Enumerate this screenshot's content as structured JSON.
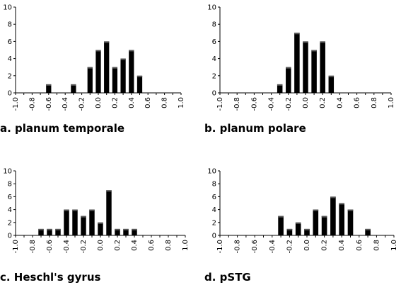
{
  "chart_data": [
    {
      "type": "bar",
      "title": "a. planum temporale",
      "x": [
        -1.0,
        -0.9,
        -0.8,
        -0.7,
        -0.6,
        -0.5,
        -0.4,
        -0.3,
        -0.2,
        -0.1,
        0.0,
        0.1,
        0.2,
        0.3,
        0.4,
        0.5,
        0.6,
        0.7,
        0.8,
        0.9,
        1.0
      ],
      "values": [
        0,
        0,
        0,
        0,
        1,
        0,
        0,
        1,
        0,
        3,
        5,
        6,
        3,
        4,
        5,
        2,
        0,
        0,
        0,
        0,
        0
      ],
      "xticks": [
        "-1.0",
        "-0.8",
        "-0.6",
        "-0.4",
        "-0.2",
        "0.0",
        "0.2",
        "0.4",
        "0.6",
        "0.8",
        "1.0"
      ],
      "yticks": [
        "0",
        "2",
        "4",
        "6",
        "8",
        "10"
      ],
      "xlim": [
        -1.0,
        1.0
      ],
      "ylim": [
        0,
        10
      ],
      "xlabel": "",
      "ylabel": "",
      "grid": false
    },
    {
      "type": "bar",
      "title": "b. planum polare",
      "x": [
        -1.0,
        -0.9,
        -0.8,
        -0.7,
        -0.6,
        -0.5,
        -0.4,
        -0.3,
        -0.2,
        -0.1,
        0.0,
        0.1,
        0.2,
        0.3,
        0.4,
        0.5,
        0.6,
        0.7,
        0.8,
        0.9,
        1.0
      ],
      "values": [
        0,
        0,
        0,
        0,
        0,
        0,
        0,
        1,
        3,
        7,
        6,
        5,
        6,
        2,
        0,
        0,
        0,
        0,
        0,
        0,
        0
      ],
      "xticks": [
        "-1.0",
        "-0.8",
        "-0.6",
        "-0.4",
        "-0.2",
        "0.0",
        "0.2",
        "0.4",
        "0.6",
        "0.8",
        "1.0"
      ],
      "yticks": [
        "0",
        "2",
        "4",
        "6",
        "8",
        "10"
      ],
      "xlim": [
        -1.0,
        1.0
      ],
      "ylim": [
        0,
        10
      ],
      "xlabel": "",
      "ylabel": "",
      "grid": false
    },
    {
      "type": "bar",
      "title": "c. Heschl's gyrus",
      "x": [
        -1.0,
        -0.9,
        -0.8,
        -0.7,
        -0.6,
        -0.5,
        -0.4,
        -0.3,
        -0.2,
        -0.1,
        0.0,
        0.1,
        0.2,
        0.3,
        0.4,
        0.5,
        0.6,
        0.7,
        0.8,
        0.9,
        1.0
      ],
      "values": [
        0,
        0,
        0,
        1,
        1,
        1,
        4,
        4,
        3,
        4,
        2,
        7,
        1,
        1,
        1,
        0,
        0,
        0,
        0,
        0,
        0
      ],
      "xticks": [
        "-1.0",
        "-0.8",
        "-0.6",
        "-0.4",
        "-0.2",
        "0.0",
        "0.2",
        "0.4",
        "0.6",
        "0.8",
        "1.0"
      ],
      "yticks": [
        "0",
        "2",
        "4",
        "6",
        "8",
        "10"
      ],
      "xlim": [
        -1.0,
        1.0
      ],
      "ylim": [
        0,
        10
      ],
      "xlabel": "",
      "ylabel": "",
      "grid": false
    },
    {
      "type": "bar",
      "title": "d. pSTG",
      "x": [
        -1.0,
        -0.9,
        -0.8,
        -0.7,
        -0.6,
        -0.5,
        -0.4,
        -0.3,
        -0.2,
        -0.1,
        0.0,
        0.1,
        0.2,
        0.3,
        0.4,
        0.5,
        0.6,
        0.7,
        0.8,
        0.9,
        1.0
      ],
      "values": [
        0,
        0,
        0,
        0,
        0,
        0,
        0,
        3,
        1,
        2,
        1,
        4,
        3,
        6,
        5,
        4,
        0,
        1,
        0,
        0,
        0
      ],
      "xticks": [
        "-1.0",
        "-0.8",
        "-0.6",
        "-0.4",
        "-0.2",
        "0.0",
        "0.2",
        "0.4",
        "0.6",
        "0.8",
        "1.0"
      ],
      "yticks": [
        "0",
        "2",
        "4",
        "6",
        "8",
        "10"
      ],
      "xlim": [
        -1.0,
        1.0
      ],
      "ylim": [
        0,
        10
      ],
      "xlabel": "",
      "ylabel": "",
      "grid": false
    }
  ],
  "colors": {
    "bar": "#000000",
    "axis": "#000000",
    "background": "#ffffff"
  }
}
